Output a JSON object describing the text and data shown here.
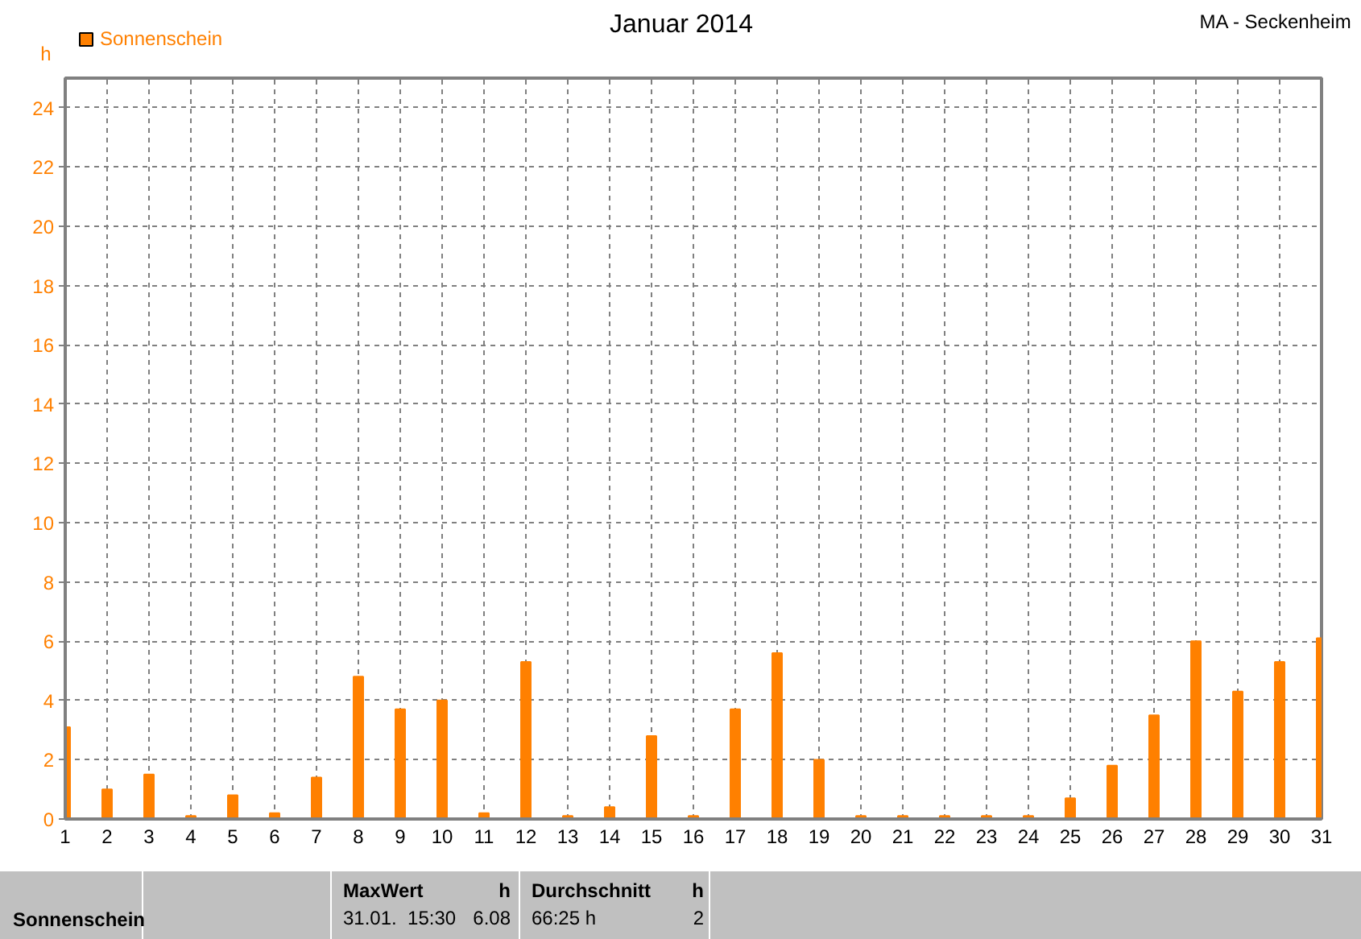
{
  "chart_data": {
    "type": "bar",
    "title": "Januar 2014",
    "subtitle": "MA - Seckenheim",
    "ylabel": "h",
    "x": [
      1,
      2,
      3,
      4,
      5,
      6,
      7,
      8,
      9,
      10,
      11,
      12,
      13,
      14,
      15,
      16,
      17,
      18,
      19,
      20,
      21,
      22,
      23,
      24,
      25,
      26,
      27,
      28,
      29,
      30,
      31
    ],
    "series": [
      {
        "name": "Sonnenschein",
        "color": "#ff8000",
        "values": [
          3.1,
          1.0,
          1.5,
          0.1,
          0.8,
          0.2,
          1.4,
          4.8,
          3.7,
          4.0,
          0.2,
          5.3,
          0.1,
          0.4,
          2.8,
          0.1,
          3.7,
          5.6,
          2.0,
          0.1,
          0.1,
          0.1,
          0.1,
          0.1,
          0.7,
          1.8,
          3.5,
          6.0,
          4.3,
          5.3,
          6.1
        ]
      }
    ],
    "xlim": [
      1,
      31
    ],
    "xticks": [
      1,
      2,
      3,
      4,
      5,
      6,
      7,
      8,
      9,
      10,
      11,
      12,
      13,
      14,
      15,
      16,
      17,
      18,
      19,
      20,
      21,
      22,
      23,
      24,
      25,
      26,
      27,
      28,
      29,
      30,
      31
    ],
    "ylim": [
      0,
      25
    ],
    "yticks": [
      0,
      2,
      4,
      6,
      8,
      10,
      12,
      14,
      16,
      18,
      20,
      22,
      24
    ],
    "grid": true,
    "legend": "top left",
    "annotations": [
      "Sonnenschein",
      "MaxWert",
      "h",
      "31.01.  15:30",
      "6.08",
      "Durchschnitt",
      "h",
      "66:25 h",
      "2"
    ]
  }
}
